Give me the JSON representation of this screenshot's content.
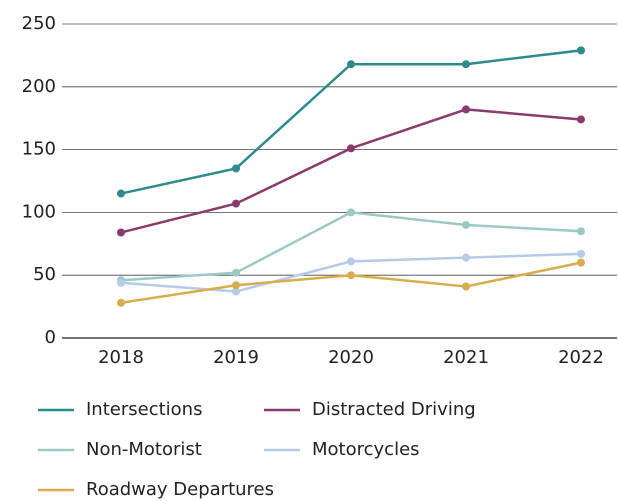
{
  "chart_data": {
    "type": "line",
    "categories": [
      "2018",
      "2019",
      "2020",
      "2021",
      "2022"
    ],
    "series": [
      {
        "name": "Intersections",
        "color": "#2e8b8b",
        "values": [
          115,
          135,
          218,
          218,
          229
        ]
      },
      {
        "name": "Distracted Driving",
        "color": "#8b3a6e",
        "values": [
          84,
          107,
          151,
          182,
          174
        ]
      },
      {
        "name": "Non-Motorist",
        "color": "#9cc9c5",
        "values": [
          46,
          52,
          100,
          90,
          85
        ]
      },
      {
        "name": "Motorcycles",
        "color": "#b5cbe8",
        "values": [
          44,
          37,
          61,
          64,
          67
        ]
      },
      {
        "name": "Roadway Departures",
        "color": "#d8ad4e",
        "values": [
          28,
          42,
          50,
          41,
          60
        ]
      }
    ],
    "ylim": [
      0,
      250
    ],
    "yticks": [
      0,
      50,
      100,
      150,
      200,
      250
    ],
    "grid": true
  }
}
